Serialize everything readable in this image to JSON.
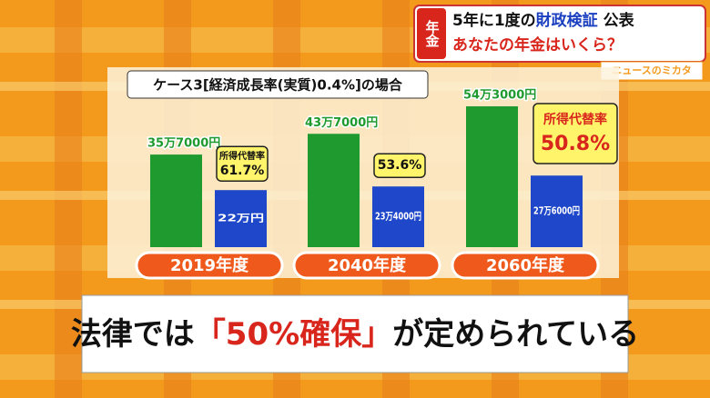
{
  "header": {
    "badge": "年金",
    "headline_parts": [
      "5年に1度の",
      "財政検証",
      "公表"
    ],
    "subline": "あなたの年金はいくら？",
    "logo": "ニュースのミカタ"
  },
  "chart_data": {
    "type": "bar",
    "title": "ケース3[経済成長率(実質)0.4%]の場合",
    "categories": [
      "2019年度",
      "2040年度",
      "2060年度"
    ],
    "series": [
      {
        "color": "#1f9a2e",
        "values": [
          357000,
          437000,
          543000
        ],
        "value_labels": [
          "35万7000円",
          "43万7000円",
          "54万3000円"
        ]
      },
      {
        "color": "#1f47c9",
        "values": [
          220000,
          234000,
          276000
        ],
        "value_labels": [
          "22万円",
          "23万4000円",
          "27万6000円"
        ]
      }
    ],
    "replacement_rate": {
      "label": "所得代替率",
      "values": [
        61.7,
        53.6,
        50.8
      ],
      "value_labels": [
        "61.7%",
        "53.6%",
        "50.8%"
      ],
      "label_shown": [
        true,
        false,
        true
      ]
    }
  },
  "caption": {
    "parts": [
      "法律では",
      "「50%確保」",
      "が定められている"
    ]
  }
}
